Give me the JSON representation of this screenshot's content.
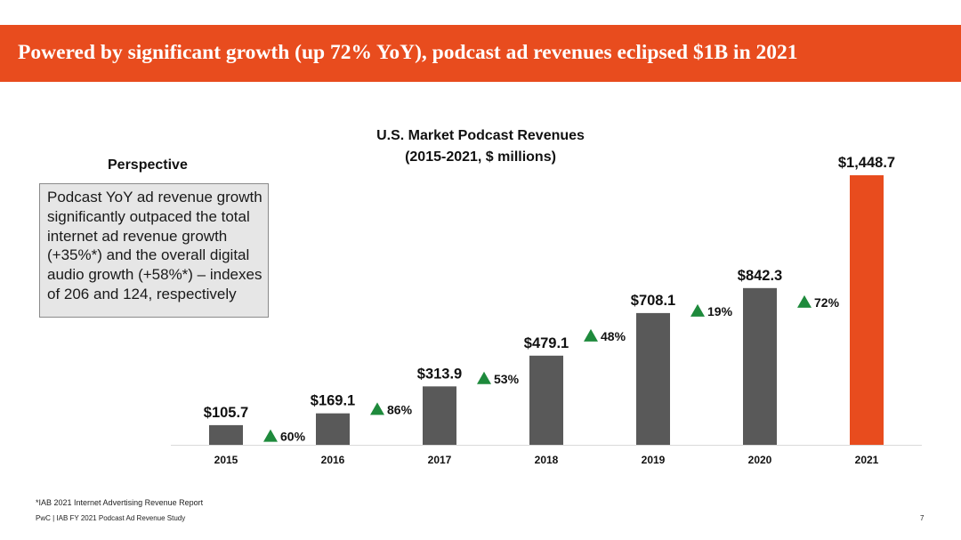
{
  "header": {
    "title": "Powered by significant growth (up 72% YoY), podcast ad revenues eclipsed $1B in 2021"
  },
  "perspective": {
    "title": "Perspective",
    "body": "Podcast YoY ad revenue growth significantly outpaced the total internet ad revenue growth (+35%*) and the overall digital audio growth (+58%*) – indexes of 206 and 124, respectively"
  },
  "chart_data": {
    "type": "bar",
    "title": "U.S. Market Podcast Revenues",
    "subtitle": "(2015-2021, $ millions)",
    "categories": [
      "2015",
      "2016",
      "2017",
      "2018",
      "2019",
      "2020",
      "2021"
    ],
    "values": [
      105.7,
      169.1,
      313.9,
      479.1,
      708.1,
      842.3,
      1448.7
    ],
    "value_labels": [
      "$105.7",
      "$169.1",
      "$313.9",
      "$479.1",
      "$708.1",
      "$842.3",
      "$1,448.7"
    ],
    "growth_labels": [
      "60%",
      "86%",
      "53%",
      "48%",
      "19%",
      "72%"
    ],
    "ylim": [
      0,
      1448.7
    ],
    "colors": {
      "bar": "#595959",
      "highlight": "#e84c1e",
      "growth_arrow": "#1e8a3c",
      "axis": "#d9d9d9"
    },
    "highlight_index": 6,
    "grid": false,
    "legend": "none"
  },
  "footer": {
    "footnote": "*IAB 2021 Internet Advertising Revenue Report",
    "source": "PwC  |  IAB FY 2021 Podcast Ad Revenue Study",
    "page_number": "7"
  }
}
